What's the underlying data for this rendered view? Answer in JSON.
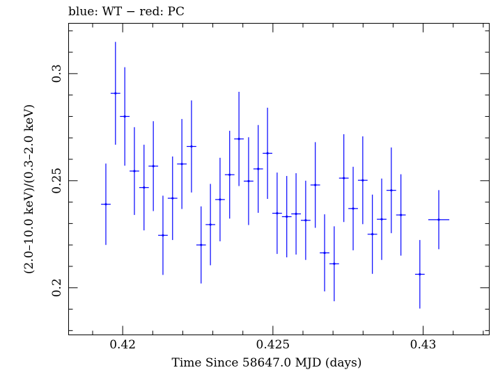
{
  "chart_data": {
    "type": "scatter",
    "title": "blue: WT − red: PC",
    "xlabel": "Time Since 58647.0 MJD (days)",
    "ylabel": "(2.0–10.0 keV)/(0.3–2.0 keV)",
    "xlim": [
      0.4182,
      0.4322
    ],
    "ylim": [
      0.178,
      0.3235
    ],
    "x_ticks": [
      {
        "value": 0.42,
        "label": "0.42"
      },
      {
        "value": 0.425,
        "label": "0.425"
      },
      {
        "value": 0.43,
        "label": "0.43"
      }
    ],
    "y_ticks": [
      {
        "value": 0.2,
        "label": "0.2"
      },
      {
        "value": 0.25,
        "label": "0.25"
      },
      {
        "value": 0.3,
        "label": "0.3"
      }
    ],
    "grid": false,
    "series": [
      {
        "color": "#0000ff",
        "points": [
          {
            "x": 0.41944,
            "xerr": 0.00016,
            "y": 0.239,
            "yerr": 0.019
          },
          {
            "x": 0.41976,
            "xerr": 0.00016,
            "y": 0.2908,
            "yerr": 0.024
          },
          {
            "x": 0.42007,
            "xerr": 0.00016,
            "y": 0.28,
            "yerr": 0.023
          },
          {
            "x": 0.42039,
            "xerr": 0.00016,
            "y": 0.2545,
            "yerr": 0.0205
          },
          {
            "x": 0.42071,
            "xerr": 0.00016,
            "y": 0.2468,
            "yerr": 0.02
          },
          {
            "x": 0.42102,
            "xerr": 0.00016,
            "y": 0.2568,
            "yerr": 0.021
          },
          {
            "x": 0.42134,
            "xerr": 0.00016,
            "y": 0.2245,
            "yerr": 0.0185
          },
          {
            "x": 0.42166,
            "xerr": 0.00016,
            "y": 0.2418,
            "yerr": 0.0195
          },
          {
            "x": 0.42197,
            "xerr": 0.00016,
            "y": 0.2578,
            "yerr": 0.021
          },
          {
            "x": 0.42229,
            "xerr": 0.00016,
            "y": 0.266,
            "yerr": 0.0215
          },
          {
            "x": 0.42261,
            "xerr": 0.00016,
            "y": 0.22,
            "yerr": 0.018
          },
          {
            "x": 0.42292,
            "xerr": 0.00016,
            "y": 0.2295,
            "yerr": 0.019
          },
          {
            "x": 0.42324,
            "xerr": 0.00016,
            "y": 0.2412,
            "yerr": 0.0195
          },
          {
            "x": 0.42356,
            "xerr": 0.00016,
            "y": 0.2528,
            "yerr": 0.0205
          },
          {
            "x": 0.42387,
            "xerr": 0.00016,
            "y": 0.2695,
            "yerr": 0.022
          },
          {
            "x": 0.42419,
            "xerr": 0.00016,
            "y": 0.2498,
            "yerr": 0.0205
          },
          {
            "x": 0.42451,
            "xerr": 0.00016,
            "y": 0.2555,
            "yerr": 0.0205
          },
          {
            "x": 0.42482,
            "xerr": 0.00016,
            "y": 0.2628,
            "yerr": 0.0213
          },
          {
            "x": 0.42514,
            "xerr": 0.00016,
            "y": 0.2348,
            "yerr": 0.019
          },
          {
            "x": 0.42546,
            "xerr": 0.00016,
            "y": 0.2332,
            "yerr": 0.019
          },
          {
            "x": 0.42577,
            "xerr": 0.00016,
            "y": 0.2345,
            "yerr": 0.019
          },
          {
            "x": 0.42609,
            "xerr": 0.00016,
            "y": 0.2315,
            "yerr": 0.0185
          },
          {
            "x": 0.42641,
            "xerr": 0.00016,
            "y": 0.248,
            "yerr": 0.02
          },
          {
            "x": 0.42672,
            "xerr": 0.00016,
            "y": 0.2163,
            "yerr": 0.018
          },
          {
            "x": 0.42704,
            "xerr": 0.00016,
            "y": 0.2112,
            "yerr": 0.0175
          },
          {
            "x": 0.42736,
            "xerr": 0.00016,
            "y": 0.2512,
            "yerr": 0.0205
          },
          {
            "x": 0.42767,
            "xerr": 0.00016,
            "y": 0.237,
            "yerr": 0.0195
          },
          {
            "x": 0.42799,
            "xerr": 0.00016,
            "y": 0.2502,
            "yerr": 0.0205
          },
          {
            "x": 0.42831,
            "xerr": 0.00016,
            "y": 0.225,
            "yerr": 0.0185
          },
          {
            "x": 0.42862,
            "xerr": 0.00016,
            "y": 0.232,
            "yerr": 0.019
          },
          {
            "x": 0.42894,
            "xerr": 0.00016,
            "y": 0.2455,
            "yerr": 0.02
          },
          {
            "x": 0.42926,
            "xerr": 0.00016,
            "y": 0.234,
            "yerr": 0.019
          },
          {
            "x": 0.42989,
            "xerr": 0.00016,
            "y": 0.2063,
            "yerr": 0.016
          },
          {
            "x": 0.43052,
            "xerr": 0.00035,
            "y": 0.2318,
            "yerr": 0.0138
          }
        ]
      }
    ]
  }
}
